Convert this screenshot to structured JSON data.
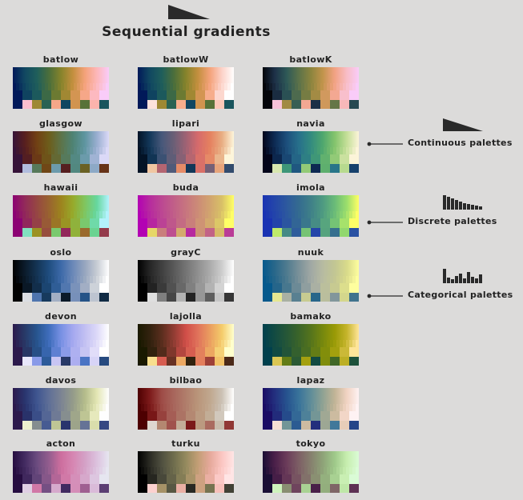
{
  "title": "Sequential gradients",
  "palettes": [
    {
      "name": "batlow",
      "stops": [
        "#011959",
        "#114861",
        "#1f5e5b",
        "#4b6e3b",
        "#86832b",
        "#c38f3e",
        "#f4a27a",
        "#fdb7b9",
        "#f9ccf9"
      ]
    },
    {
      "name": "batlowW",
      "stops": [
        "#011959",
        "#114861",
        "#1f5e5b",
        "#4b6e3b",
        "#86832b",
        "#c38f3e",
        "#f4a27a",
        "#fcd2c8",
        "#fffefe"
      ]
    },
    {
      "name": "batlowK",
      "stops": [
        "#04050a",
        "#1d3148",
        "#2e5957",
        "#5c7249",
        "#8b843e",
        "#c1944b",
        "#f2a283",
        "#f8bdc6",
        "#f9ccf9"
      ]
    },
    {
      "name": "glasgow",
      "stops": [
        "#361338",
        "#571f1f",
        "#714014",
        "#6d5d1b",
        "#5d7348",
        "#4e8374",
        "#5e95a0",
        "#99aed0",
        "#dbd9f7"
      ]
    },
    {
      "name": "lipari",
      "stops": [
        "#031326",
        "#13385a",
        "#47587a",
        "#6b5f76",
        "#9e6274",
        "#d56a6c",
        "#e5805f",
        "#e8ad82",
        "#fdf5da"
      ]
    },
    {
      "name": "navia",
      "stops": [
        "#03051a",
        "#0d2b54",
        "#1d4f7c",
        "#27708b",
        "#338b7f",
        "#4fa76e",
        "#84c46d",
        "#c4df98",
        "#fcf4d9"
      ]
    },
    {
      "name": "hawaii",
      "stops": [
        "#8c0273",
        "#922a59",
        "#964742",
        "#996330",
        "#9d831e",
        "#97a92a",
        "#80c55f",
        "#66d79e",
        "#b3f2fd"
      ]
    },
    {
      "name": "buda",
      "stops": [
        "#b301b3",
        "#b72b9e",
        "#bc4892",
        "#c15f88",
        "#c7757f",
        "#cc8b77",
        "#d1a36f",
        "#d8c067",
        "#ffff66"
      ]
    },
    {
      "name": "imola",
      "stops": [
        "#1a33b3",
        "#2446a9",
        "#2d599e",
        "#346b90",
        "#3f8088",
        "#4e9a81",
        "#6abb78",
        "#9bde6c",
        "#ffff66"
      ]
    },
    {
      "name": "oslo",
      "stops": [
        "#010101",
        "#0b1b2b",
        "#143454",
        "#1f4d7f",
        "#3c69a8",
        "#6b88b8",
        "#97a6bf",
        "#c7ccd4",
        "#ffffff"
      ]
    },
    {
      "name": "grayC",
      "stops": [
        "#000000",
        "#262626",
        "#404040",
        "#595959",
        "#747474",
        "#8f8f8f",
        "#ababab",
        "#cdcdcd",
        "#ffffff"
      ]
    },
    {
      "name": "nuuk",
      "stops": [
        "#05598c",
        "#29678a",
        "#4f7b8f",
        "#7a9199",
        "#a0a8a4",
        "#b7bba1",
        "#c2c693",
        "#d8da8a",
        "#fefe9e"
      ]
    },
    {
      "name": "devon",
      "stops": [
        "#2c1a4c",
        "#283a68",
        "#27558f",
        "#3f6dbc",
        "#7790e3",
        "#a4a8ef",
        "#c1bff2",
        "#ddd9f8",
        "#ffffff"
      ]
    },
    {
      "name": "lajolla",
      "stops": [
        "#191900",
        "#33220f",
        "#5b2e1e",
        "#913c33",
        "#d04e48",
        "#e0725b",
        "#ea9d5f",
        "#f4cb6a",
        "#ffffcc"
      ]
    },
    {
      "name": "bamako",
      "stops": [
        "#00404d",
        "#134b42",
        "#265737",
        "#3b6429",
        "#55741c",
        "#76880e",
        "#999a06",
        "#c5b42b",
        "#ffe599"
      ]
    },
    {
      "name": "davos",
      "stops": [
        "#2c194c",
        "#29356e",
        "#3f5590",
        "#5f6f97",
        "#7b8393",
        "#949b8a",
        "#b4bc8b",
        "#e3e6b4",
        "#fefefe"
      ]
    },
    {
      "name": "bilbao",
      "stops": [
        "#4d0001",
        "#7d1a1a",
        "#9e4c47",
        "#a8665c",
        "#b07d6b",
        "#b9957a",
        "#c0a78e",
        "#cbc1b4",
        "#ffffff"
      ]
    },
    {
      "name": "lapaz",
      "stops": [
        "#1a0c64",
        "#232f7e",
        "#26538f",
        "#39739a",
        "#5f8d99",
        "#8fa293",
        "#c1b496",
        "#f1d3c2",
        "#fef2f3"
      ]
    },
    {
      "name": "acton",
      "stops": [
        "#260d40",
        "#432b61",
        "#6b4b7f",
        "#935d8e",
        "#cd6e9e",
        "#d686b2",
        "#d4a1c6",
        "#dcc2de",
        "#e6e6f0"
      ]
    },
    {
      "name": "turku",
      "stops": [
        "#000000",
        "#2b2b24",
        "#505040",
        "#6f6d4d",
        "#948a5e",
        "#c29e75",
        "#e5a89a",
        "#fbc6c2",
        "#ffe5e5"
      ]
    },
    {
      "name": "tokyo",
      "stops": [
        "#1a0e34",
        "#4b2049",
        "#6b3c5a",
        "#7d5f65",
        "#86806e",
        "#8ea378",
        "#9fc98a",
        "#c7eeaf",
        "#dafbd6"
      ]
    }
  ],
  "legend": [
    {
      "label": "Continuous palettes",
      "icon": "wedge-icon"
    },
    {
      "label": "Discrete palettes",
      "icon": "stepped-bars-icon"
    },
    {
      "label": "Categorical palettes",
      "icon": "mixed-bars-icon"
    }
  ],
  "colors": {
    "background": "#dcdbda",
    "ink": "#222222"
  }
}
